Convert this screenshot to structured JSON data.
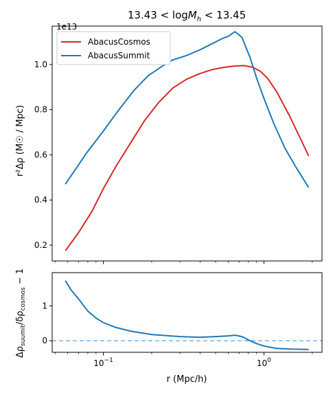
{
  "chart_data": [
    {
      "type": "line",
      "title": "13.43 < logM_h < 13.45",
      "title_parts": {
        "lhs": "13.43 < log",
        "var": "M",
        "sub": "h",
        "rhs": " < 13.45"
      },
      "ylabel": "r²Δρ (M☉ / Mpc)",
      "y_offset_text": "1e13",
      "xscale": "log",
      "xlim": [
        0.048,
        2.3
      ],
      "ylim": [
        1300000000000.0,
        11700000000000.0
      ],
      "y_ticks": [
        2000000000000.0,
        4000000000000.0,
        6000000000000.0,
        8000000000000.0,
        10000000000000.0
      ],
      "y_tick_labels": [
        "0.2",
        "0.4",
        "0.6",
        "0.8",
        "1.0"
      ],
      "legend": {
        "position": "top-left"
      },
      "series": [
        {
          "name": "AbacusCosmos",
          "color": "#d62728",
          "x": [
            0.058,
            0.07,
            0.085,
            0.1,
            0.12,
            0.15,
            0.18,
            0.22,
            0.27,
            0.33,
            0.4,
            0.48,
            0.57,
            0.65,
            0.75,
            0.85,
            0.95,
            1.05,
            1.2,
            1.45,
            1.9
          ],
          "y": [
            1750000000000.0,
            2550000000000.0,
            3500000000000.0,
            4500000000000.0,
            5500000000000.0,
            6600000000000.0,
            7500000000000.0,
            8300000000000.0,
            8950000000000.0,
            9350000000000.0,
            9600000000000.0,
            9780000000000.0,
            9880000000000.0,
            9930000000000.0,
            9950000000000.0,
            9880000000000.0,
            9700000000000.0,
            9400000000000.0,
            8800000000000.0,
            7700000000000.0,
            5950000000000.0
          ]
        },
        {
          "name": "AbacusSummit",
          "color": "#1f77b4",
          "x": [
            0.058,
            0.07,
            0.078,
            0.1,
            0.125,
            0.155,
            0.19,
            0.23,
            0.27,
            0.33,
            0.4,
            0.47,
            0.55,
            0.6,
            0.66,
            0.73,
            0.82,
            0.9,
            1.0,
            1.15,
            1.35,
            1.6,
            1.9
          ],
          "y": [
            4700000000000.0,
            5550000000000.0,
            6050000000000.0,
            7050000000000.0,
            8000000000000.0,
            8850000000000.0,
            9500000000000.0,
            9900000000000.0,
            10200000000000.0,
            10400000000000.0,
            10650000000000.0,
            10900000000000.0,
            11150000000000.0,
            11250000000000.0,
            11450000000000.0,
            11200000000000.0,
            10300000000000.0,
            9400000000000.0,
            8500000000000.0,
            7400000000000.0,
            6300000000000.0,
            5400000000000.0,
            4550000000000.0
          ]
        }
      ]
    },
    {
      "type": "line",
      "xlabel": "r (Mpc/h)",
      "ylabel": "Δρ_suumit/δρ_cosmos − 1",
      "ylabel_parts": {
        "a": "Δρ",
        "a_sub": "suumit",
        "b": "/δρ",
        "b_sub": "cosmos",
        "c": " − 1"
      },
      "xscale": "log",
      "xlim": [
        0.048,
        2.3
      ],
      "ylim": [
        -0.33,
        1.95
      ],
      "y_ticks": [
        0,
        1
      ],
      "y_tick_labels": [
        "0",
        "1"
      ],
      "x_ticks": [
        0.1,
        1.0
      ],
      "x_tick_labels": [
        {
          "base": "10",
          "exp": "−1"
        },
        {
          "base": "10",
          "exp": "0"
        }
      ],
      "reference_line": {
        "y": 0,
        "style": "dashed",
        "color": "#7fb1dd"
      },
      "series": [
        {
          "color": "#1f77b4",
          "x": [
            0.058,
            0.063,
            0.07,
            0.08,
            0.09,
            0.1,
            0.12,
            0.15,
            0.2,
            0.3,
            0.4,
            0.5,
            0.6,
            0.66,
            0.73,
            0.82,
            0.9,
            1.0,
            1.2,
            1.5,
            1.9
          ],
          "y": [
            1.72,
            1.45,
            1.2,
            0.85,
            0.65,
            0.52,
            0.38,
            0.27,
            0.18,
            0.12,
            0.1,
            0.12,
            0.14,
            0.16,
            0.12,
            0.0,
            -0.08,
            -0.15,
            -0.22,
            -0.24,
            -0.25
          ]
        }
      ]
    }
  ]
}
